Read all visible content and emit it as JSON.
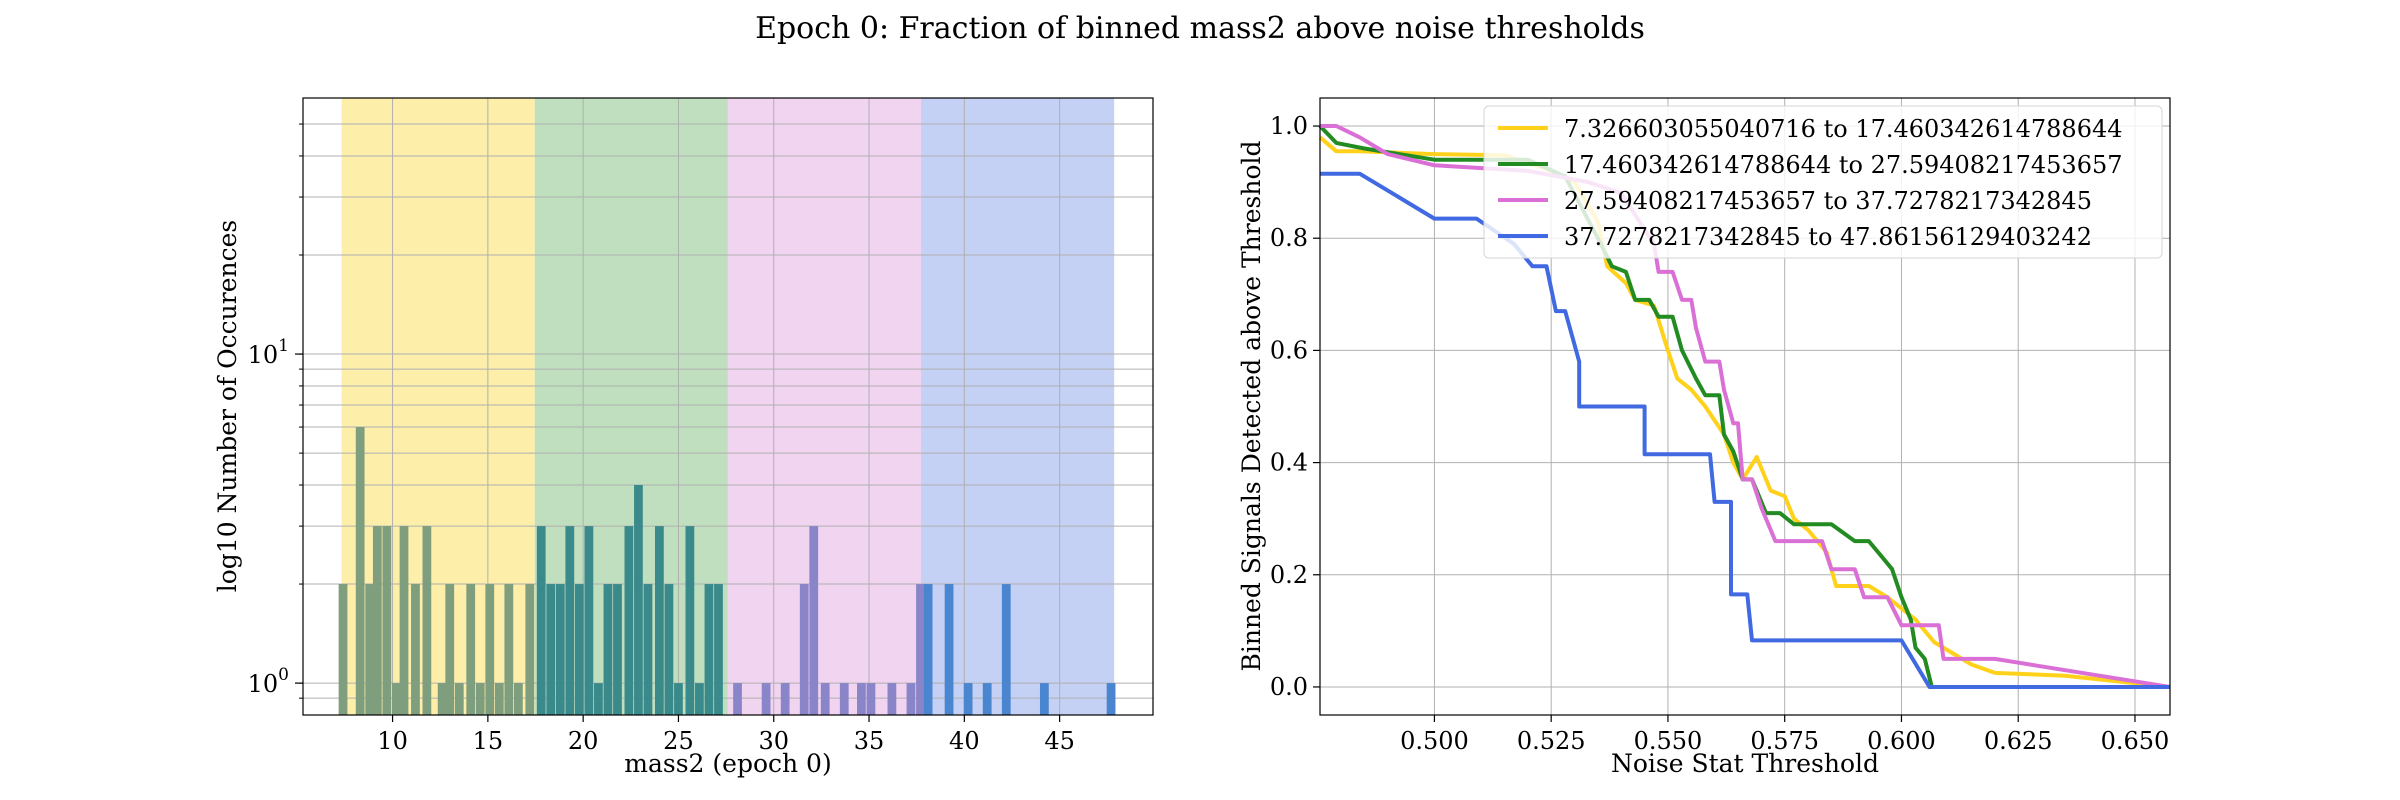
{
  "title": "Epoch 0: Fraction of binned mass2 above noise thresholds",
  "chart_data": [
    {
      "type": "bar",
      "scale": "log",
      "xlabel": "mass2 (epoch 0)",
      "ylabel": "log10 Number of Occurences",
      "xlim": [
        5.3,
        49.9
      ],
      "ylim": [
        0.8,
        60
      ],
      "xticks": [
        10,
        15,
        20,
        25,
        30,
        35,
        40,
        45
      ],
      "yticks": [
        {
          "value": 1,
          "label": "10",
          "exp": "0"
        },
        {
          "value": 10,
          "label": "10",
          "exp": "1"
        }
      ],
      "grid": true,
      "bands": [
        {
          "from": 7.326603055040716,
          "to": 17.460342614788644,
          "color": "#fdeeaa"
        },
        {
          "from": 17.460342614788644,
          "to": 27.59408217453657,
          "color": "#bfdfbf"
        },
        {
          "from": 27.59408217453657,
          "to": 37.7278217342845,
          "color": "#f0d4f0"
        },
        {
          "from": 37.7278217342845,
          "to": 47.86156129403242,
          "color": "#c4d0f4"
        }
      ],
      "bins": [
        {
          "x": 7.4,
          "count": 2
        },
        {
          "x": 8.3,
          "count": 6
        },
        {
          "x": 8.8,
          "count": 2
        },
        {
          "x": 9.2,
          "count": 3
        },
        {
          "x": 9.7,
          "count": 3
        },
        {
          "x": 10.2,
          "count": 1
        },
        {
          "x": 10.6,
          "count": 3
        },
        {
          "x": 11.2,
          "count": 2
        },
        {
          "x": 11.8,
          "count": 3
        },
        {
          "x": 12.6,
          "count": 1
        },
        {
          "x": 13.0,
          "count": 2
        },
        {
          "x": 13.5,
          "count": 1
        },
        {
          "x": 14.1,
          "count": 2
        },
        {
          "x": 14.6,
          "count": 1
        },
        {
          "x": 15.1,
          "count": 2
        },
        {
          "x": 15.6,
          "count": 1
        },
        {
          "x": 16.1,
          "count": 2
        },
        {
          "x": 16.6,
          "count": 1
        },
        {
          "x": 17.2,
          "count": 2
        },
        {
          "x": 17.8,
          "count": 3
        },
        {
          "x": 18.3,
          "count": 2
        },
        {
          "x": 18.8,
          "count": 2
        },
        {
          "x": 19.3,
          "count": 3
        },
        {
          "x": 19.8,
          "count": 2
        },
        {
          "x": 20.3,
          "count": 3
        },
        {
          "x": 20.8,
          "count": 1
        },
        {
          "x": 21.3,
          "count": 2
        },
        {
          "x": 21.8,
          "count": 2
        },
        {
          "x": 22.4,
          "count": 3
        },
        {
          "x": 22.9,
          "count": 4
        },
        {
          "x": 23.4,
          "count": 2
        },
        {
          "x": 24.0,
          "count": 3
        },
        {
          "x": 24.5,
          "count": 2
        },
        {
          "x": 25.0,
          "count": 1
        },
        {
          "x": 25.6,
          "count": 3
        },
        {
          "x": 26.1,
          "count": 1
        },
        {
          "x": 26.6,
          "count": 2
        },
        {
          "x": 27.1,
          "count": 2
        },
        {
          "x": 28.1,
          "count": 1
        },
        {
          "x": 29.6,
          "count": 1
        },
        {
          "x": 30.6,
          "count": 1
        },
        {
          "x": 31.6,
          "count": 2
        },
        {
          "x": 32.1,
          "count": 3
        },
        {
          "x": 32.7,
          "count": 1
        },
        {
          "x": 33.7,
          "count": 1
        },
        {
          "x": 34.6,
          "count": 1
        },
        {
          "x": 35.1,
          "count": 1
        },
        {
          "x": 36.2,
          "count": 1
        },
        {
          "x": 37.2,
          "count": 1
        },
        {
          "x": 37.7,
          "count": 2
        },
        {
          "x": 38.1,
          "count": 2
        },
        {
          "x": 39.2,
          "count": 2
        },
        {
          "x": 40.2,
          "count": 1
        },
        {
          "x": 41.2,
          "count": 1
        },
        {
          "x": 42.2,
          "count": 2
        },
        {
          "x": 44.2,
          "count": 1
        },
        {
          "x": 47.7,
          "count": 1
        }
      ]
    },
    {
      "type": "line",
      "xlabel": "Noise Stat Threshold",
      "ylabel": "Binned Signals Detected above Threshold",
      "xlim": [
        0.4755,
        0.6575
      ],
      "ylim": [
        -0.05,
        1.05
      ],
      "xticks": [
        "0.500",
        "0.525",
        "0.550",
        "0.575",
        "0.600",
        "0.625",
        "0.650"
      ],
      "yticks": [
        "0.0",
        "0.2",
        "0.4",
        "0.6",
        "0.8",
        "1.0"
      ],
      "grid": true,
      "legend_position": "top-right",
      "series": [
        {
          "name": "7.326603055040716 to 17.460342614788644",
          "color": "#ffd11a",
          "points": [
            [
              0.4755,
              0.98
            ],
            [
              0.479,
              0.955
            ],
            [
              0.484,
              0.955
            ],
            [
              0.5,
              0.95
            ],
            [
              0.515,
              0.948
            ],
            [
              0.525,
              0.92
            ],
            [
              0.53,
              0.9
            ],
            [
              0.535,
              0.83
            ],
            [
              0.537,
              0.75
            ],
            [
              0.541,
              0.72
            ],
            [
              0.543,
              0.69
            ],
            [
              0.547,
              0.68
            ],
            [
              0.55,
              0.6
            ],
            [
              0.552,
              0.55
            ],
            [
              0.555,
              0.53
            ],
            [
              0.558,
              0.5
            ],
            [
              0.562,
              0.45
            ],
            [
              0.564,
              0.4
            ],
            [
              0.566,
              0.37
            ],
            [
              0.569,
              0.41
            ],
            [
              0.572,
              0.35
            ],
            [
              0.575,
              0.34
            ],
            [
              0.577,
              0.3
            ],
            [
              0.58,
              0.28
            ],
            [
              0.584,
              0.24
            ],
            [
              0.586,
              0.18
            ],
            [
              0.59,
              0.18
            ],
            [
              0.593,
              0.18
            ],
            [
              0.597,
              0.16
            ],
            [
              0.6,
              0.14
            ],
            [
              0.603,
              0.12
            ],
            [
              0.607,
              0.08
            ],
            [
              0.615,
              0.04
            ],
            [
              0.62,
              0.025
            ],
            [
              0.635,
              0.02
            ],
            [
              0.6575,
              0.0
            ]
          ]
        },
        {
          "name": "17.460342614788644 to 27.59408217453657",
          "color": "#228b22",
          "points": [
            [
              0.4755,
              1.0
            ],
            [
              0.479,
              0.97
            ],
            [
              0.485,
              0.96
            ],
            [
              0.5,
              0.94
            ],
            [
              0.52,
              0.94
            ],
            [
              0.528,
              0.91
            ],
            [
              0.535,
              0.8
            ],
            [
              0.538,
              0.75
            ],
            [
              0.541,
              0.74
            ],
            [
              0.543,
              0.69
            ],
            [
              0.546,
              0.69
            ],
            [
              0.548,
              0.66
            ],
            [
              0.551,
              0.66
            ],
            [
              0.553,
              0.6
            ],
            [
              0.556,
              0.55
            ],
            [
              0.558,
              0.52
            ],
            [
              0.561,
              0.52
            ],
            [
              0.562,
              0.45
            ],
            [
              0.564,
              0.42
            ],
            [
              0.566,
              0.37
            ],
            [
              0.568,
              0.37
            ],
            [
              0.571,
              0.31
            ],
            [
              0.574,
              0.31
            ],
            [
              0.577,
              0.29
            ],
            [
              0.58,
              0.29
            ],
            [
              0.585,
              0.29
            ],
            [
              0.59,
              0.26
            ],
            [
              0.593,
              0.26
            ],
            [
              0.596,
              0.23
            ],
            [
              0.598,
              0.21
            ],
            [
              0.6,
              0.16
            ],
            [
              0.602,
              0.12
            ],
            [
              0.603,
              0.07
            ],
            [
              0.605,
              0.05
            ],
            [
              0.6065,
              0.0
            ],
            [
              0.6575,
              0.0
            ]
          ]
        },
        {
          "name": "27.59408217453657 to 37.7278217342845",
          "color": "#da70d6",
          "points": [
            [
              0.4755,
              1.0
            ],
            [
              0.479,
              1.0
            ],
            [
              0.484,
              0.98
            ],
            [
              0.49,
              0.95
            ],
            [
              0.5,
              0.93
            ],
            [
              0.52,
              0.92
            ],
            [
              0.533,
              0.9
            ],
            [
              0.54,
              0.88
            ],
            [
              0.547,
              0.79
            ],
            [
              0.548,
              0.74
            ],
            [
              0.551,
              0.74
            ],
            [
              0.553,
              0.69
            ],
            [
              0.555,
              0.69
            ],
            [
              0.556,
              0.64
            ],
            [
              0.558,
              0.58
            ],
            [
              0.561,
              0.58
            ],
            [
              0.562,
              0.53
            ],
            [
              0.564,
              0.47
            ],
            [
              0.565,
              0.47
            ],
            [
              0.566,
              0.37
            ],
            [
              0.568,
              0.37
            ],
            [
              0.57,
              0.32
            ],
            [
              0.573,
              0.26
            ],
            [
              0.576,
              0.26
            ],
            [
              0.58,
              0.26
            ],
            [
              0.583,
              0.26
            ],
            [
              0.585,
              0.21
            ],
            [
              0.59,
              0.21
            ],
            [
              0.592,
              0.16
            ],
            [
              0.597,
              0.16
            ],
            [
              0.6,
              0.11
            ],
            [
              0.605,
              0.11
            ],
            [
              0.608,
              0.11
            ],
            [
              0.609,
              0.05
            ],
            [
              0.62,
              0.05
            ],
            [
              0.6575,
              0.0
            ]
          ]
        },
        {
          "name": "37.7278217342845 to 47.86156129403242",
          "color": "#4169e1",
          "points": [
            [
              0.4755,
              0.915
            ],
            [
              0.484,
              0.915
            ],
            [
              0.5,
              0.835
            ],
            [
              0.509,
              0.835
            ],
            [
              0.517,
              0.79
            ],
            [
              0.521,
              0.75
            ],
            [
              0.524,
              0.75
            ],
            [
              0.526,
              0.67
            ],
            [
              0.528,
              0.67
            ],
            [
              0.531,
              0.58
            ],
            [
              0.531,
              0.5
            ],
            [
              0.545,
              0.5
            ],
            [
              0.545,
              0.415
            ],
            [
              0.559,
              0.415
            ],
            [
              0.56,
              0.33
            ],
            [
              0.5635,
              0.33
            ],
            [
              0.5635,
              0.165
            ],
            [
              0.567,
              0.165
            ],
            [
              0.568,
              0.083
            ],
            [
              0.6,
              0.083
            ],
            [
              0.606,
              0.0
            ],
            [
              0.6575,
              0.0
            ]
          ]
        }
      ]
    }
  ]
}
